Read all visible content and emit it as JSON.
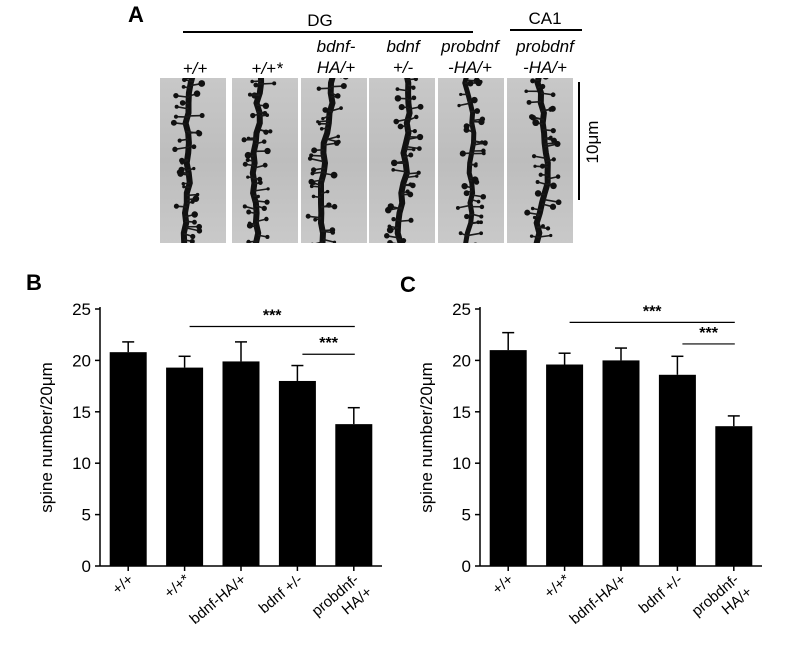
{
  "panel_a": {
    "letter": "A",
    "group_labels": {
      "dg": "DG",
      "ca1": "CA1"
    },
    "columns": [
      {
        "line1": "+/+",
        "line2": ""
      },
      {
        "line1": "+/+*",
        "line2": ""
      },
      {
        "line1": "bdnf-",
        "line2": "HA/+"
      },
      {
        "line1": "bdnf",
        "line2": "+/-"
      },
      {
        "line1": "probdnf",
        "line2": "-HA/+"
      },
      {
        "line1": "probdnf",
        "line2": "-HA/+"
      }
    ],
    "scale_bar_label": "10μm"
  },
  "chart_data": [
    {
      "type": "bar",
      "panel": "B",
      "categories": [
        "+/+",
        "+/+*",
        "bdnf-HA/+",
        "bdnf +/-",
        "probdnf-HA/+"
      ],
      "category_lines": [
        [
          "+/+"
        ],
        [
          "+/+*"
        ],
        [
          "bdnf-HA/+"
        ],
        [
          "bdnf +/-"
        ],
        [
          "probdnf-",
          "HA/+"
        ]
      ],
      "values": [
        20.8,
        19.3,
        19.9,
        18.0,
        13.8
      ],
      "errors": [
        1.0,
        1.1,
        1.9,
        1.5,
        1.6
      ],
      "ylabel": "spine number/20μm",
      "ylim": [
        0,
        25
      ],
      "yticks": [
        0,
        5,
        10,
        15,
        20,
        25
      ],
      "significance": [
        {
          "from": 1,
          "to": 4,
          "label": "***",
          "y": 23.3
        },
        {
          "from": 3,
          "to": 4,
          "label": "***",
          "y": 20.6
        }
      ],
      "color": "#000000"
    },
    {
      "type": "bar",
      "panel": "C",
      "categories": [
        "+/+",
        "+/+*",
        "bdnf-HA/+",
        "bdnf +/-",
        "probdnf-HA/+"
      ],
      "category_lines": [
        [
          "+/+"
        ],
        [
          "+/+*"
        ],
        [
          "bdnf-HA/+"
        ],
        [
          "bdnf +/-"
        ],
        [
          "probdnf-",
          "HA/+"
        ]
      ],
      "values": [
        21.0,
        19.6,
        20.0,
        18.6,
        13.6
      ],
      "errors": [
        1.7,
        1.1,
        1.2,
        1.8,
        1.0
      ],
      "ylabel": "spine number/20μm",
      "ylim": [
        0,
        25
      ],
      "yticks": [
        0,
        5,
        10,
        15,
        20,
        25
      ],
      "significance": [
        {
          "from": 1,
          "to": 4,
          "label": "***",
          "y": 23.7
        },
        {
          "from": 3,
          "to": 4,
          "label": "***",
          "y": 21.6
        }
      ],
      "color": "#000000"
    }
  ]
}
